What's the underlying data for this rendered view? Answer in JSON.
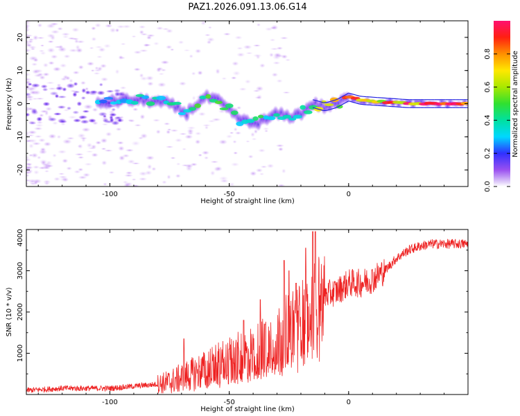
{
  "chart_data": [
    {
      "type": "heatmap",
      "title": "PAZ1.2026.091.13.06.G14",
      "xlabel": "Height of straight line (km)",
      "ylabel": "Frequency (Hz)",
      "xlim": [
        -135,
        50
      ],
      "ylim": [
        -25,
        25
      ],
      "xticks": [
        -100,
        -50,
        0
      ],
      "yticks": [
        -20,
        -10,
        0,
        10,
        20
      ],
      "tick_labels_x": [
        "-100",
        "-50",
        "0"
      ],
      "tick_labels_y": [
        "-20",
        "-10",
        "0",
        "10",
        "20"
      ],
      "ridge": {
        "x": [
          -105,
          -95,
          -85,
          -75,
          -68,
          -60,
          -55,
          -50,
          -45,
          -40,
          -35,
          -30,
          -25,
          -20,
          -15,
          -10,
          -5,
          0,
          5,
          15,
          25,
          50
        ],
        "freq": [
          0,
          1,
          1,
          0,
          -3,
          2,
          1,
          -2,
          -5,
          -6,
          -5,
          -3,
          -4,
          -3,
          0,
          -1,
          0,
          2,
          1,
          0.5,
          0,
          0
        ],
        "amplitude": [
          0.3,
          0.35,
          0.4,
          0.45,
          0.45,
          0.5,
          0.5,
          0.5,
          0.45,
          0.45,
          0.45,
          0.45,
          0.45,
          0.5,
          0.6,
          0.7,
          0.75,
          0.85,
          0.85,
          0.9,
          0.95,
          0.9
        ]
      },
      "colorbar": {
        "label": "Normalized spectral amplitude",
        "range": [
          0,
          1
        ],
        "ticks": [
          "0.0",
          "0.2",
          "0.4",
          "0.6",
          "0.8"
        ]
      }
    },
    {
      "type": "line",
      "xlabel": "Height of straight line (km)",
      "ylabel": "SNR (10 * v/v)",
      "xlim": [
        -135,
        50
      ],
      "ylim": [
        0,
        4000
      ],
      "xticks": [
        -100,
        -50,
        0
      ],
      "yticks": [
        1000,
        2000,
        3000,
        4000
      ],
      "tick_labels_x": [
        "-100",
        "-50",
        "0"
      ],
      "tick_labels_y": [
        "1000",
        "2000",
        "3000",
        "4000"
      ],
      "series": [
        {
          "name": "SNR",
          "color": "#ee2222",
          "x": [
            -135,
            -120,
            -110,
            -100,
            -90,
            -80,
            -75,
            -70,
            -65,
            -60,
            -55,
            -50,
            -45,
            -40,
            -35,
            -30,
            -25,
            -20,
            -17,
            -15,
            -12,
            -10,
            -5,
            0,
            5,
            10,
            15,
            20,
            25,
            30,
            35,
            40,
            45,
            50
          ],
          "envelope": [
            100,
            150,
            150,
            150,
            200,
            250,
            300,
            400,
            500,
            600,
            700,
            800,
            900,
            1000,
            1200,
            1400,
            1600,
            1800,
            2000,
            2200,
            2300,
            2400,
            2500,
            2700,
            2700,
            2800,
            3000,
            3300,
            3500,
            3600,
            3650,
            3650,
            3650,
            3650
          ],
          "spikes": [
            {
              "x": -69,
              "y": 1350
            },
            {
              "x": -50,
              "y": 1100
            },
            {
              "x": -44,
              "y": 1800
            },
            {
              "x": -37,
              "y": 2300
            },
            {
              "x": -35,
              "y": 1700
            },
            {
              "x": -27,
              "y": 3250
            },
            {
              "x": -25,
              "y": 3000
            },
            {
              "x": -22,
              "y": 2700
            },
            {
              "x": -18,
              "y": 3550
            },
            {
              "x": -15,
              "y": 3950
            },
            {
              "x": -14,
              "y": 3950
            }
          ]
        }
      ]
    }
  ]
}
